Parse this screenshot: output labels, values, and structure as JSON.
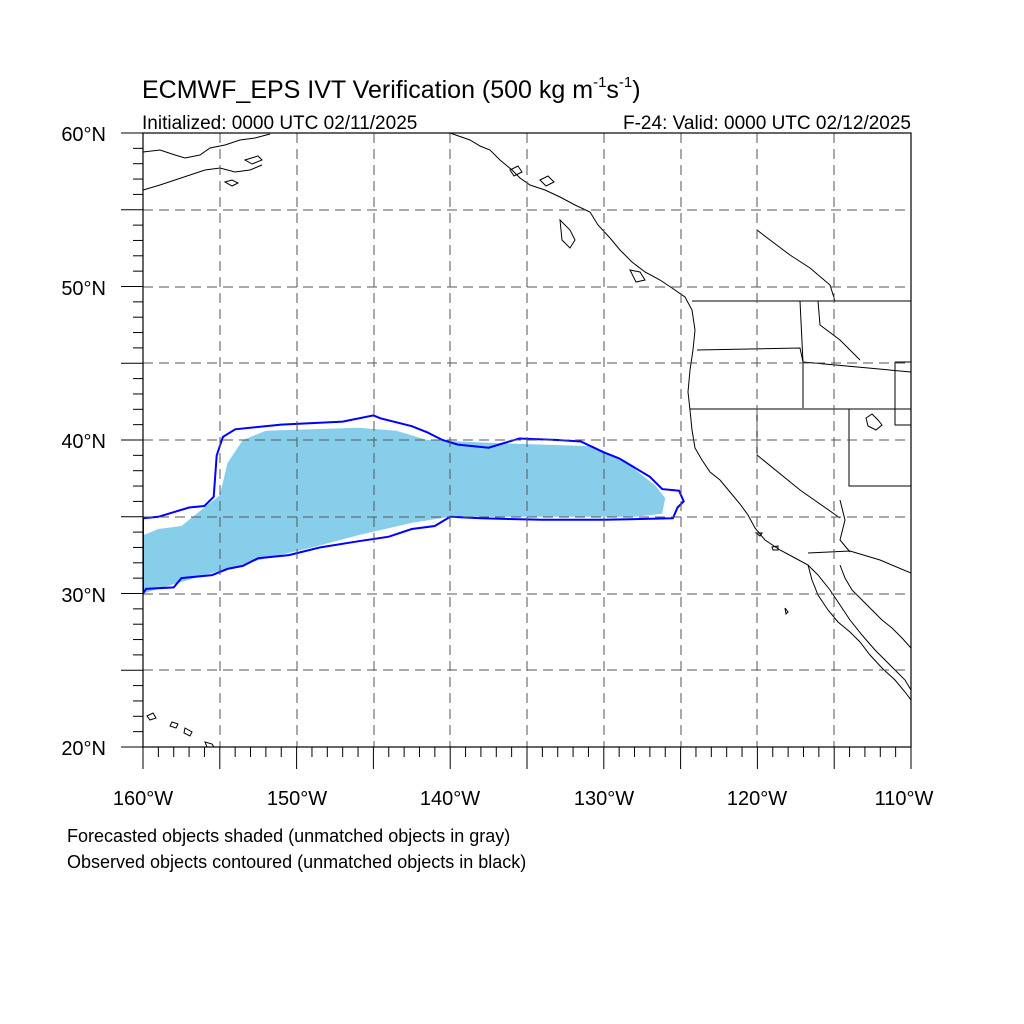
{
  "title": {
    "main": "ECMWF_EPS IVT Verification (500 kg m",
    "sup1": "-1",
    "mid": "s",
    "sup2": "-1",
    "end": ")"
  },
  "initialized": "Initialized: 0000 UTC 02/11/2025",
  "valid": "F-24: Valid: 0000 UTC 02/12/2025",
  "lat_labels": [
    "60°N",
    "50°N",
    "40°N",
    "30°N",
    "20°N"
  ],
  "lon_labels": [
    "160°W",
    "150°W",
    "140°W",
    "130°W",
    "120°W",
    "110°W"
  ],
  "caption": [
    "Forecasted objects shaded (unmatched objects in gray)",
    "Observed objects contoured (unmatched objects in black)"
  ],
  "map_extent": {
    "lon_min": -160,
    "lon_max": -110,
    "lat_min": 20,
    "lat_max": 60
  },
  "colors": {
    "forecast_fill": "#87ceeb",
    "observed_contour": "#0000ff",
    "coastline": "#000000",
    "grid": "#555555"
  },
  "forecast_object": {
    "coords": [
      [
        -160,
        33.8
      ],
      [
        -159,
        34.2
      ],
      [
        -157.5,
        34.4
      ],
      [
        -156,
        35.6
      ],
      [
        -155,
        36.4
      ],
      [
        -154.5,
        38.5
      ],
      [
        -153.5,
        40.0
      ],
      [
        -152,
        40.6
      ],
      [
        -146,
        40.8
      ],
      [
        -143.5,
        40.6
      ],
      [
        -141.5,
        40.0
      ],
      [
        -137,
        39.8
      ],
      [
        -131,
        39.6
      ],
      [
        -128.5,
        38.5
      ],
      [
        -126.6,
        37.0
      ],
      [
        -126,
        36.2
      ],
      [
        -126.2,
        35.2
      ],
      [
        -128,
        35.0
      ],
      [
        -133,
        35.0
      ],
      [
        -140,
        35.0
      ],
      [
        -142.5,
        34.6
      ],
      [
        -146,
        33.8
      ],
      [
        -149,
        33.0
      ],
      [
        -152,
        32.3
      ],
      [
        -156,
        31.2
      ],
      [
        -158,
        30.6
      ],
      [
        -160,
        30.0
      ]
    ]
  },
  "observed_object": {
    "coords": [
      [
        -160,
        30.0
      ],
      [
        -159.8,
        30.3
      ],
      [
        -158,
        30.4
      ],
      [
        -157.5,
        31.0
      ],
      [
        -155.5,
        31.2
      ],
      [
        -154.5,
        31.6
      ],
      [
        -153.5,
        31.8
      ],
      [
        -152.5,
        32.3
      ],
      [
        -150.5,
        32.5
      ],
      [
        -148.5,
        33.0
      ],
      [
        -146,
        33.4
      ],
      [
        -144,
        33.7
      ],
      [
        -142.5,
        34.2
      ],
      [
        -141,
        34.4
      ],
      [
        -140,
        35.0
      ],
      [
        -138,
        34.9
      ],
      [
        -134,
        34.8
      ],
      [
        -130,
        34.8
      ],
      [
        -125.5,
        34.9
      ],
      [
        -125.2,
        35.6
      ],
      [
        -124.8,
        36.0
      ],
      [
        -125.1,
        36.7
      ],
      [
        -126.2,
        36.8
      ],
      [
        -127,
        37.6
      ],
      [
        -129,
        38.8
      ],
      [
        -130,
        39.2
      ],
      [
        -131.5,
        39.9
      ],
      [
        -133,
        40.0
      ],
      [
        -135.5,
        40.1
      ],
      [
        -137.5,
        39.5
      ],
      [
        -139.5,
        39.7
      ],
      [
        -140.5,
        40.0
      ],
      [
        -141.5,
        40.5
      ],
      [
        -142.5,
        40.9
      ],
      [
        -144.5,
        41.4
      ],
      [
        -145,
        41.6
      ],
      [
        -147,
        41.2
      ],
      [
        -151,
        41.0
      ],
      [
        -154,
        40.7
      ],
      [
        -154.8,
        40.2
      ],
      [
        -155.2,
        39.0
      ],
      [
        -155.4,
        36.3
      ],
      [
        -156,
        35.7
      ],
      [
        -157,
        35.6
      ],
      [
        -159,
        35.0
      ],
      [
        -160,
        34.9
      ]
    ]
  }
}
